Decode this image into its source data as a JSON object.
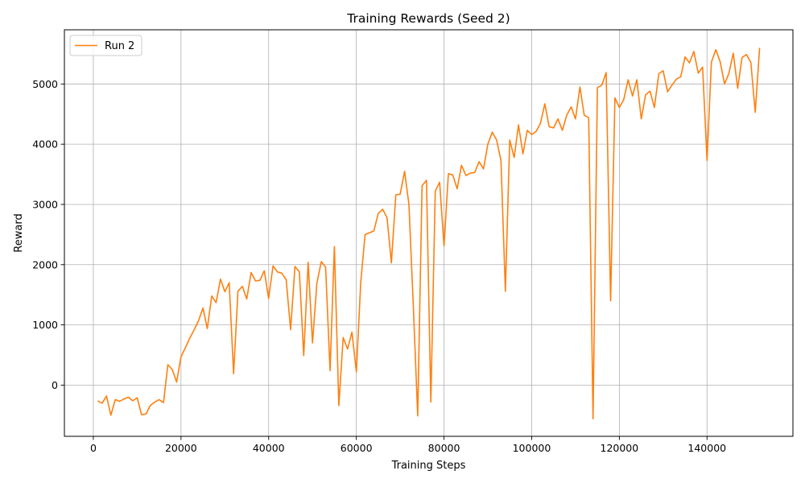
{
  "chart_data": {
    "type": "line",
    "title": "Training Rewards (Seed 2)",
    "xlabel": "Training Steps",
    "ylabel": "Reward",
    "xlim": [
      -6600,
      159600
    ],
    "ylim": [
      -850,
      5900
    ],
    "xticks": [
      0,
      20000,
      40000,
      60000,
      80000,
      100000,
      120000,
      140000
    ],
    "yticks": [
      0,
      1000,
      2000,
      3000,
      4000,
      5000
    ],
    "grid": true,
    "legend_position": "top-left",
    "colors": {
      "series": "#ff7f0e",
      "grid": "#b0b0b0",
      "axis": "#000000"
    },
    "series": [
      {
        "name": "Run 2",
        "x": [
          1000,
          2000,
          3000,
          4000,
          5000,
          6000,
          7000,
          8000,
          9000,
          10000,
          11000,
          12000,
          13000,
          14000,
          15000,
          16000,
          17000,
          18000,
          19000,
          20000,
          21000,
          22000,
          23000,
          24000,
          25000,
          26000,
          27000,
          28000,
          29000,
          30000,
          31000,
          32000,
          33000,
          34000,
          35000,
          36000,
          37000,
          38000,
          39000,
          40000,
          41000,
          42000,
          43000,
          44000,
          45000,
          46000,
          47000,
          48000,
          49000,
          50000,
          51000,
          52000,
          53000,
          54000,
          55000,
          56000,
          57000,
          58000,
          59000,
          60000,
          61000,
          62000,
          63000,
          64000,
          65000,
          66000,
          67000,
          68000,
          69000,
          70000,
          71000,
          72000,
          73000,
          74000,
          75000,
          76000,
          77000,
          78000,
          79000,
          80000,
          81000,
          82000,
          83000,
          84000,
          85000,
          86000,
          87000,
          88000,
          89000,
          90000,
          91000,
          92000,
          93000,
          94000,
          95000,
          96000,
          97000,
          98000,
          99000,
          100000,
          101000,
          102000,
          103000,
          104000,
          105000,
          106000,
          107000,
          108000,
          109000,
          110000,
          111000,
          112000,
          113000,
          114000,
          115000,
          116000,
          117000,
          118000,
          119000,
          120000,
          121000,
          122000,
          123000,
          124000,
          125000,
          126000,
          127000,
          128000,
          129000,
          130000,
          131000,
          132000,
          133000,
          134000,
          135000,
          136000,
          137000,
          138000,
          139000,
          140000,
          141000,
          142000,
          143000,
          144000,
          145000,
          146000,
          147000,
          148000,
          149000,
          150000,
          151000,
          152000
        ],
        "values": [
          -260,
          -300,
          -180,
          -500,
          -240,
          -270,
          -230,
          -200,
          -260,
          -210,
          -490,
          -480,
          -340,
          -280,
          -240,
          -290,
          340,
          260,
          50,
          470,
          620,
          780,
          920,
          1070,
          1280,
          940,
          1480,
          1370,
          1760,
          1550,
          1700,
          190,
          1560,
          1640,
          1430,
          1870,
          1730,
          1740,
          1900,
          1440,
          1980,
          1880,
          1860,
          1750,
          920,
          1970,
          1880,
          490,
          2040,
          700,
          1690,
          2050,
          1960,
          240,
          2300,
          -340,
          790,
          600,
          880,
          220,
          1700,
          2500,
          2530,
          2560,
          2850,
          2920,
          2780,
          2030,
          3160,
          3170,
          3550,
          3000,
          1330,
          -510,
          3310,
          3400,
          -280,
          3220,
          3370,
          2310,
          3510,
          3490,
          3260,
          3650,
          3480,
          3520,
          3530,
          3710,
          3590,
          4000,
          4200,
          4070,
          3730,
          1560,
          4070,
          3780,
          4320,
          3840,
          4230,
          4160,
          4210,
          4350,
          4670,
          4290,
          4270,
          4420,
          4230,
          4480,
          4620,
          4420,
          4950,
          4480,
          4440,
          -560,
          4940,
          4980,
          5190,
          1400,
          4770,
          4610,
          4740,
          5070,
          4800,
          5070,
          4420,
          4820,
          4880,
          4610,
          5170,
          5220,
          4870,
          4980,
          5080,
          5120,
          5450,
          5350,
          5540,
          5180,
          5280,
          3730,
          5360,
          5570,
          5370,
          5000,
          5180,
          5510,
          4930,
          5440,
          5490,
          5360,
          4530,
          5600
        ]
      }
    ]
  }
}
